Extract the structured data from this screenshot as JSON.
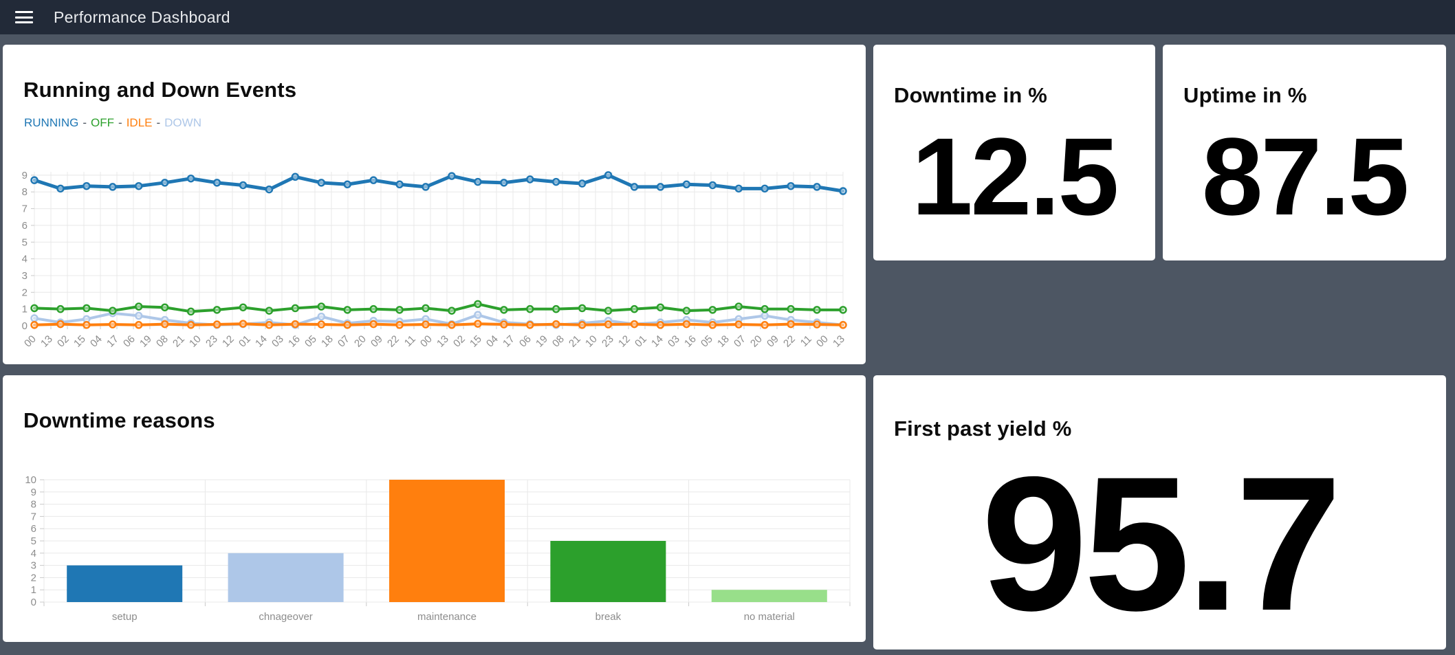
{
  "topbar": {
    "title": "Performance Dashboard"
  },
  "panels": {
    "events": {
      "title": "Running and Down Events",
      "legend_separator": "-"
    },
    "downtime_pct": {
      "title": "Downtime in %",
      "value": "12.5"
    },
    "uptime_pct": {
      "title": "Uptime in %",
      "value": "87.5"
    },
    "downtime_reasons": {
      "title": "Downtime reasons"
    },
    "first_pass_yield": {
      "title": "First past yield %",
      "value": "95.7"
    }
  },
  "colors": {
    "running_blue": "#1f77b4",
    "off_green": "#2ca02c",
    "idle_orange": "#ff7f0e",
    "down_light_blue": "#aec7e8",
    "no_material_light_green": "#98df8a",
    "page_background": "#4d5663",
    "topbar_background": "#222a38",
    "panel_background": "#ffffff",
    "grid_line": "#e8e8e8",
    "axis_text": "#8c8c8c"
  },
  "chart_data": [
    {
      "type": "line",
      "title": "Running and Down Events",
      "legend_position": "top-left",
      "grid": true,
      "ylim": [
        0,
        9.2
      ],
      "yticks": [
        0,
        1,
        2,
        3,
        4,
        5,
        6,
        7,
        8,
        9
      ],
      "x_tick_labels": [
        "00",
        "13",
        "02",
        "15",
        "04",
        "17",
        "06",
        "19",
        "08",
        "21",
        "10",
        "23",
        "12",
        "01",
        "14",
        "03",
        "16",
        "05",
        "18",
        "07",
        "20",
        "09",
        "22",
        "11",
        "00",
        "13",
        "02",
        "15",
        "04",
        "17",
        "06",
        "19",
        "08",
        "21",
        "10",
        "23",
        "12",
        "01",
        "14",
        "03",
        "16",
        "05",
        "18",
        "07",
        "20",
        "09",
        "22",
        "11",
        "00",
        "13"
      ],
      "series": [
        {
          "name": "RUNNING",
          "color": "#1f77b4",
          "values": [
            8.7,
            8.2,
            8.35,
            8.3,
            8.35,
            8.55,
            8.8,
            8.55,
            8.4,
            8.15,
            8.9,
            8.55,
            8.45,
            8.7,
            8.45,
            8.3,
            8.95,
            8.6,
            8.55,
            8.75,
            8.6,
            8.5,
            9.0,
            8.3,
            8.3,
            8.45,
            8.4,
            8.2,
            8.2,
            8.35,
            8.3,
            8.05
          ]
        },
        {
          "name": "OFF",
          "color": "#2ca02c",
          "values": [
            1.05,
            1.0,
            1.05,
            0.9,
            1.15,
            1.1,
            0.85,
            0.95,
            1.1,
            0.9,
            1.05,
            1.15,
            0.95,
            1.0,
            0.95,
            1.05,
            0.9,
            1.3,
            0.95,
            1.0,
            1.0,
            1.05,
            0.9,
            1.0,
            1.1,
            0.9,
            0.95,
            1.15,
            1.0,
            1.0,
            0.95,
            0.95
          ]
        },
        {
          "name": "IDLE",
          "color": "#ff7f0e",
          "values": [
            0.05,
            0.1,
            0.05,
            0.08,
            0.05,
            0.1,
            0.05,
            0.08,
            0.12,
            0.05,
            0.1,
            0.08,
            0.05,
            0.1,
            0.05,
            0.08,
            0.05,
            0.12,
            0.08,
            0.05,
            0.1,
            0.05,
            0.08,
            0.1,
            0.05,
            0.1,
            0.05,
            0.08,
            0.05,
            0.1,
            0.08,
            0.05
          ]
        },
        {
          "name": "DOWN",
          "color": "#aec7e8",
          "values": [
            0.45,
            0.2,
            0.4,
            0.75,
            0.6,
            0.35,
            0.15,
            0.05,
            0.1,
            0.2,
            0.05,
            0.55,
            0.15,
            0.3,
            0.25,
            0.4,
            0.1,
            0.65,
            0.2,
            0.1,
            0.05,
            0.15,
            0.3,
            0.1,
            0.2,
            0.35,
            0.2,
            0.4,
            0.6,
            0.35,
            0.2,
            0.05
          ]
        }
      ]
    },
    {
      "type": "bar",
      "title": "Downtime reasons",
      "grid": true,
      "ylim": [
        0,
        10
      ],
      "yticks": [
        0,
        1,
        2,
        3,
        4,
        5,
        6,
        7,
        8,
        9,
        10
      ],
      "categories": [
        "setup",
        "chnageover",
        "maintenance",
        "break",
        "no material"
      ],
      "values": [
        3,
        4,
        10,
        5,
        1
      ],
      "bar_colors": [
        "#1f77b4",
        "#aec7e8",
        "#ff7f0e",
        "#2ca02c",
        "#98df8a"
      ]
    }
  ]
}
